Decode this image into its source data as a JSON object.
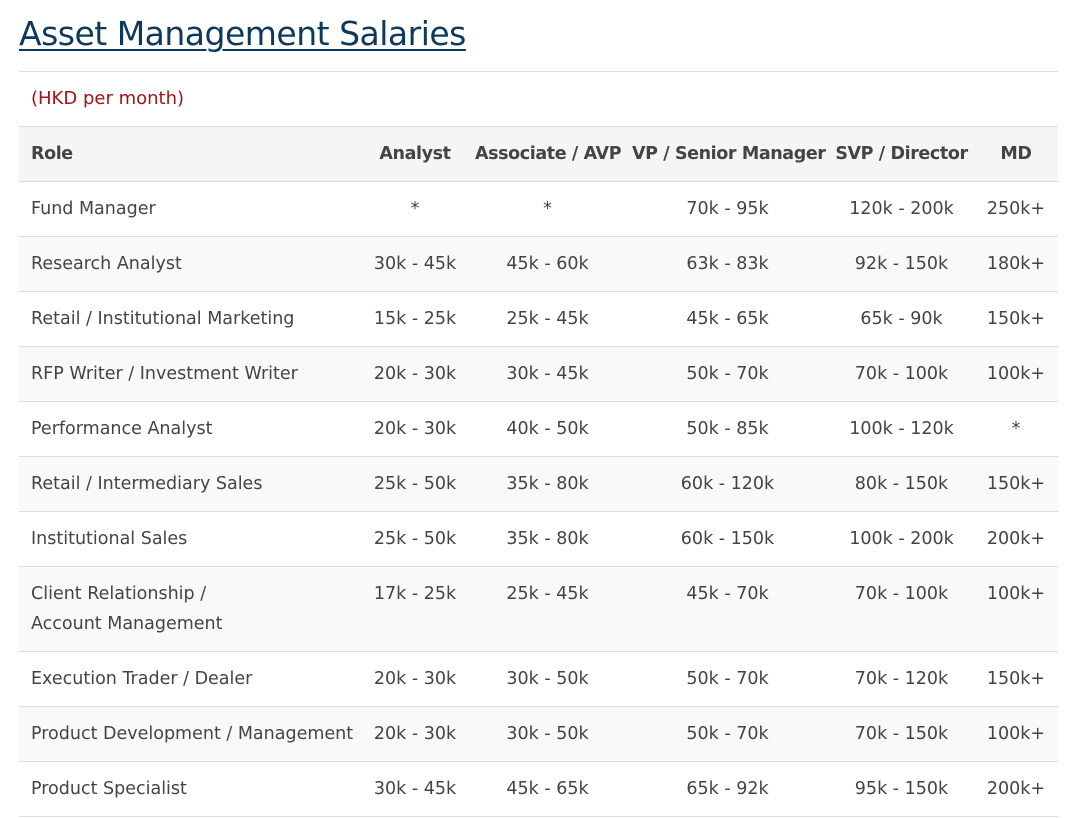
{
  "page": {
    "title": "Asset Management Salaries",
    "currency_note": "(HKD per month)"
  },
  "table": {
    "headers": [
      "Role",
      "Analyst",
      "Associate / AVP",
      "VP / Senior Manager",
      "SVP / Director",
      "MD"
    ],
    "rows": [
      [
        "Fund Manager",
        "*",
        "*",
        "70k - 95k",
        "120k - 200k",
        "250k+"
      ],
      [
        "Research Analyst",
        "30k - 45k",
        "45k - 60k",
        "63k - 83k",
        "92k - 150k",
        "180k+"
      ],
      [
        "Retail / Institutional Marketing",
        "15k - 25k",
        "25k - 45k",
        "45k - 65k",
        "65k - 90k",
        "150k+"
      ],
      [
        "RFP Writer / Investment Writer",
        "20k - 30k",
        "30k - 45k",
        "50k - 70k",
        "70k - 100k",
        "100k+"
      ],
      [
        "Performance Analyst",
        "20k - 30k",
        "40k - 50k",
        "50k - 85k",
        "100k - 120k",
        "*"
      ],
      [
        "Retail / Intermediary Sales",
        "25k - 50k",
        "35k - 80k",
        "60k - 120k",
        "80k - 150k",
        "150k+"
      ],
      [
        "Institutional Sales",
        "25k - 50k",
        "35k - 80k",
        "60k - 150k",
        "100k - 200k",
        "200k+"
      ],
      [
        "Client Relationship / Account Management",
        "17k - 25k",
        "25k - 45k",
        "45k - 70k",
        "70k - 100k",
        "100k+"
      ],
      [
        "Execution Trader / Dealer",
        "20k - 30k",
        "30k - 50k",
        "50k - 70k",
        "70k - 120k",
        "150k+"
      ],
      [
        "Product Development / Management",
        "20k - 30k",
        "30k - 50k",
        "50k - 70k",
        "70k - 150k",
        "100k+"
      ],
      [
        "Product Specialist",
        "30k - 45k",
        "45k - 65k",
        "65k - 92k",
        "95k - 150k",
        "200k+"
      ]
    ]
  }
}
